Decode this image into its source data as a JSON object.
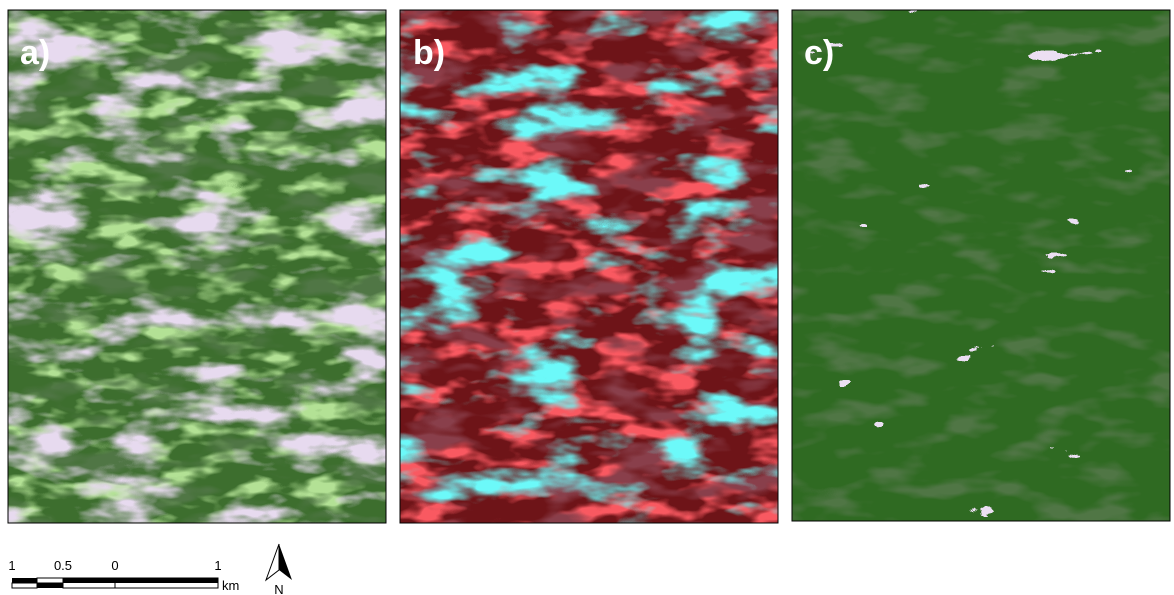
{
  "panels": [
    {
      "label": "a)"
    },
    {
      "label": "b)"
    },
    {
      "label": "c)"
    }
  ],
  "scale_bar": {
    "labels": [
      "1",
      "0.5",
      "0",
      "1"
    ],
    "unit": "km"
  },
  "north_arrow": {
    "label": "N"
  }
}
